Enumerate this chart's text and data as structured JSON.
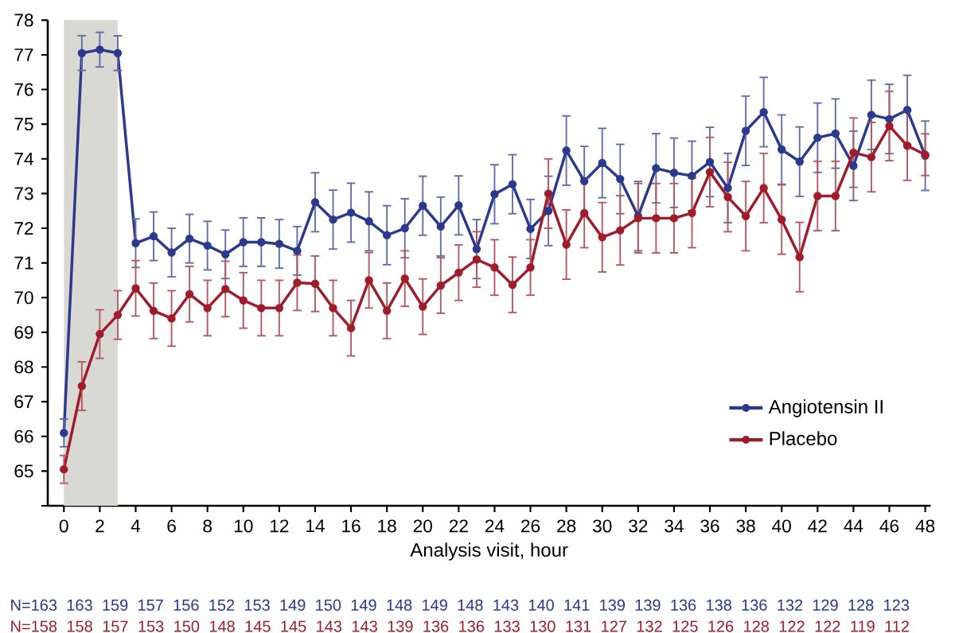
{
  "chart_data": {
    "type": "line",
    "xlabel": "Analysis visit, hour",
    "x": [
      0,
      1,
      2,
      3,
      4,
      5,
      6,
      7,
      8,
      9,
      10,
      11,
      12,
      13,
      14,
      15,
      16,
      17,
      18,
      19,
      20,
      21,
      22,
      23,
      24,
      25,
      26,
      27,
      28,
      29,
      30,
      31,
      32,
      33,
      34,
      35,
      36,
      37,
      38,
      39,
      40,
      41,
      42,
      43,
      44,
      45,
      46,
      47,
      48
    ],
    "series": [
      {
        "name": "Angiotensin II",
        "color": "#2b3a8c",
        "values": [
          66.1,
          77.05,
          77.15,
          77.05,
          71.57,
          71.77,
          71.3,
          71.7,
          71.5,
          71.25,
          71.6,
          71.6,
          71.55,
          71.35,
          72.75,
          72.25,
          72.45,
          72.2,
          71.8,
          72.0,
          72.65,
          72.05,
          72.66,
          71.4,
          72.98,
          73.27,
          71.98,
          72.5,
          74.24,
          73.36,
          73.88,
          73.42,
          72.35,
          73.73,
          73.6,
          73.51,
          73.91,
          73.16,
          74.81,
          75.35,
          74.27,
          73.92,
          74.61,
          74.73,
          73.8,
          75.27,
          75.15,
          75.41,
          74.09
        ],
        "errors": [
          0.4,
          0.5,
          0.5,
          0.5,
          0.7,
          0.7,
          0.7,
          0.7,
          0.7,
          0.7,
          0.7,
          0.7,
          0.7,
          0.7,
          0.85,
          0.85,
          0.85,
          0.85,
          0.85,
          0.85,
          0.85,
          0.85,
          0.85,
          0.85,
          0.85,
          0.85,
          0.85,
          1.0,
          1.0,
          1.0,
          1.0,
          1.0,
          1.0,
          1.0,
          1.0,
          1.0,
          1.0,
          1.0,
          1.0,
          1.0,
          1.0,
          1.0,
          1.0,
          1.0,
          1.0,
          1.0,
          1.0,
          1.0,
          1.0
        ]
      },
      {
        "name": "Placebo",
        "color": "#a01c2a",
        "values": [
          65.05,
          67.45,
          68.95,
          69.5,
          70.27,
          69.62,
          69.4,
          70.1,
          69.7,
          70.25,
          69.92,
          69.7,
          69.7,
          70.43,
          70.4,
          69.7,
          69.12,
          70.5,
          69.62,
          70.55,
          69.74,
          70.35,
          70.72,
          71.1,
          70.87,
          70.37,
          70.87,
          73.0,
          71.53,
          72.44,
          71.74,
          71.94,
          72.29,
          72.29,
          72.29,
          72.44,
          73.62,
          72.9,
          72.35,
          73.16,
          72.25,
          71.17,
          72.93,
          72.93,
          74.18,
          74.05,
          74.95,
          74.38,
          74.12
        ],
        "errors": [
          0.4,
          0.7,
          0.7,
          0.7,
          0.8,
          0.8,
          0.8,
          0.8,
          0.8,
          0.8,
          0.8,
          0.8,
          0.8,
          0.8,
          0.8,
          0.8,
          0.8,
          0.8,
          0.8,
          0.8,
          0.8,
          0.8,
          0.8,
          0.8,
          0.8,
          0.8,
          0.8,
          1.0,
          1.0,
          1.0,
          1.0,
          1.0,
          1.0,
          1.0,
          1.0,
          1.0,
          1.0,
          1.0,
          1.0,
          1.0,
          1.0,
          1.0,
          1.0,
          1.0,
          1.0,
          1.0,
          1.0,
          1.0,
          0.6
        ]
      }
    ],
    "xlim": [
      -0.9,
      48.3
    ],
    "xticks": [
      0,
      2,
      4,
      6,
      8,
      10,
      12,
      14,
      16,
      18,
      20,
      22,
      24,
      26,
      28,
      30,
      32,
      34,
      36,
      38,
      40,
      42,
      44,
      46,
      48
    ],
    "ylim": [
      64,
      78
    ],
    "yticks": [
      {
        "value": 64,
        "label": null
      },
      65,
      66,
      67,
      68,
      69,
      70,
      71,
      72,
      73,
      74,
      75,
      76,
      77,
      78
    ],
    "bands": [
      {
        "axis": "x",
        "from": 0,
        "to": 3,
        "color": "#d9d9d4"
      }
    ],
    "marker": "circle",
    "line_style": "solid",
    "grid": false,
    "legend": "bottom right",
    "annotations": [
      "N=163 163 159 157 156 152 153 149 150 149 148 149 148 143 140 141 139 139 136 138 136 132 129 128 123",
      "N=158 158 157 153 150 148 145 145 143 143 139 136 136 133 130 131 127 132 125 126 128 122 122 119 112"
    ]
  }
}
